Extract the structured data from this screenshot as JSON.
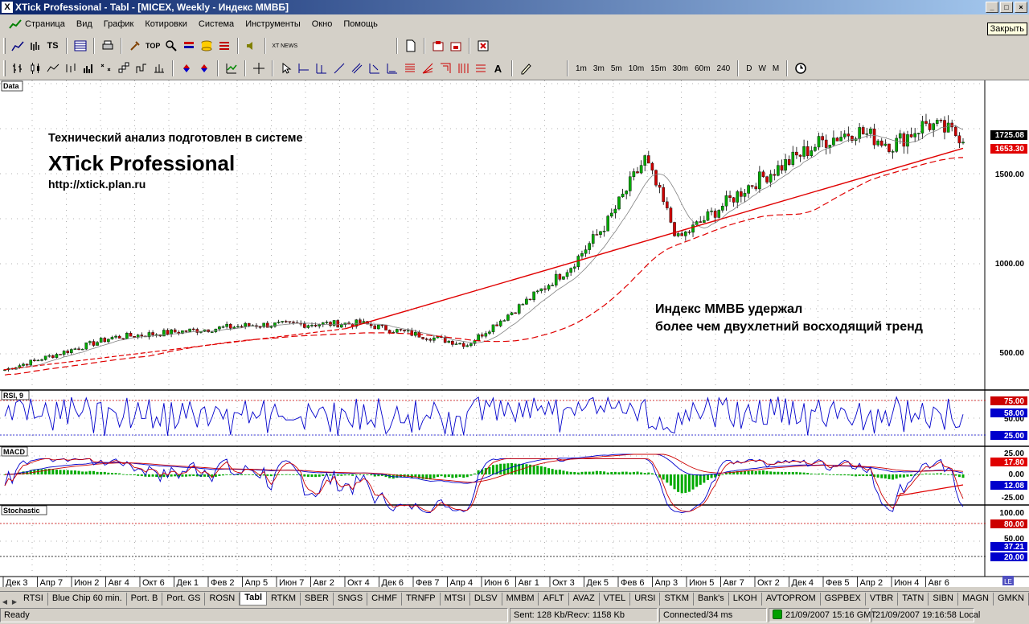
{
  "window": {
    "title": "XTick Professional - Tabl - [MICEX, Weekly - Индекс ММВБ]",
    "app_icon_glyph": "X",
    "close_tooltip": "Закрыть"
  },
  "menu": [
    "Страница",
    "Вид",
    "График",
    "Котировки",
    "Система",
    "Инструменты",
    "Окно",
    "Помощь"
  ],
  "toolbar": {
    "top_label": "TOP",
    "ts_label": "TS",
    "news_label": "XT NEWS",
    "timeframes": [
      "1m",
      "3m",
      "5m",
      "10m",
      "15m",
      "30m",
      "60m",
      "240",
      "D",
      "W",
      "M"
    ]
  },
  "chart": {
    "panes": {
      "price": "Data",
      "rsi": "RSI, 9",
      "macd": "MACD",
      "stoch": "Stochastic"
    },
    "annotations": {
      "line1": "Технический анализ подготовлен в системе",
      "line2": "XTick Professional",
      "line3": "http://xtick.plan.ru",
      "comment1": "Индекс ММВБ удержал",
      "comment2": "более чем двухлетний восходящий тренд"
    },
    "price_axis": [
      "500.00",
      "1000.00",
      "1500.00"
    ],
    "last_price": "1725.08",
    "ma_price": "1653.30",
    "rsi_axis": {
      "hi": "75.00",
      "mid": "50.00",
      "lo": "25.00",
      "current": "58.00"
    },
    "macd_axis": {
      "top": "25.00",
      "zero": "0.00",
      "bottom": "-25.00",
      "v1": "17.80",
      "v2": "12.08"
    },
    "stoch_axis": {
      "top": "100.00",
      "mid": "50.00",
      "hi": "80.00",
      "lo": "20.00",
      "current": "37.21"
    },
    "dates": [
      "Дек 3",
      "Апр 7",
      "Июн 2",
      "Авг 4",
      "Окт 6",
      "Дек 1",
      "Фев 2",
      "Апр 5",
      "Июн 7",
      "Авг 2",
      "Окт 4",
      "Дек 6",
      "Фев 7",
      "Апр 4",
      "Июн 6",
      "Авг 1",
      "Окт 3",
      "Дек 5",
      "Фев 6",
      "Апр 3",
      "Июн 5",
      "Авг 7",
      "Окт 2",
      "Дек 4",
      "Фев 5",
      "Апр 2",
      "Июн 4",
      "Авг 6"
    ],
    "colors": {
      "up": "#00aa00",
      "down": "#cc0000",
      "trend": "#e00000",
      "rsi": "#0000cc",
      "stoch_k": "#0000cc",
      "stoch_d": "#cc0000",
      "hist": "#00aa00"
    }
  },
  "chart_data": {
    "type": "candlestick",
    "y_ticks": [
      500,
      1000,
      1500
    ],
    "last": 1725.08,
    "ma": 1653.3,
    "key_points": [
      {
        "date": "Дек 3",
        "value": 420
      },
      {
        "date": "Авг 4",
        "value": 600
      },
      {
        "date": "Апр 5",
        "value": 670
      },
      {
        "date": "Окт 4",
        "value": 680
      },
      {
        "date": "Апр 4",
        "value": 560
      },
      {
        "date": "Авг 1",
        "value": 850
      },
      {
        "date": "Окт 3",
        "value": 1000
      },
      {
        "date": "Дек 5",
        "value": 1250
      },
      {
        "date": "Фев 6",
        "value": 1600
      },
      {
        "date": "Апр 3",
        "value": 1150
      },
      {
        "date": "Авг 7",
        "value": 1450
      },
      {
        "date": "Дек 4",
        "value": 1700
      },
      {
        "date": "Фев 5",
        "value": 1760
      },
      {
        "date": "Апр 2",
        "value": 1680
      },
      {
        "date": "Июн 4",
        "value": 1800
      },
      {
        "date": "Авг 6",
        "value": 1725
      }
    ]
  },
  "tabs": [
    "RTSI",
    "Blue Chip 60 min.",
    "Port. B",
    "Port. GS",
    "ROSN",
    "Tabl",
    "RTKM",
    "SBER",
    "SNGS",
    "CHMF",
    "TRNFP",
    "MTSI",
    "DLSV",
    "MMBM",
    "AFLT",
    "AVAZ",
    "VTEL",
    "URSI",
    "STKM",
    "Bank's",
    "LKOH",
    "AVTOPROM",
    "GSPBEX",
    "VTBR",
    "TATN",
    "SIBN",
    "MAGN",
    "GMKN"
  ],
  "active_tab": "Tabl",
  "status": {
    "ready": "Ready",
    "traffic": "Sent: 128 Kb/Recv: 1158 Kb",
    "connection": "Connected/34 ms",
    "gmt_time": "21/09/2007 15:16 GMT",
    "local_time": "21/09/2007 19:16:58 Local"
  }
}
